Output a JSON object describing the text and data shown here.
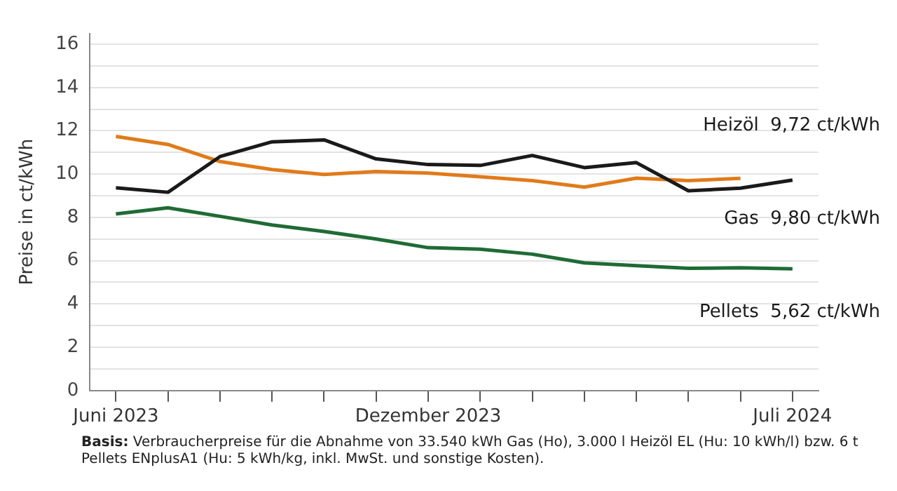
{
  "chart_data": {
    "type": "line",
    "ylabel": "Preise in ct/kWh",
    "categories": [
      "Juni 2023",
      null,
      null,
      null,
      null,
      null,
      "Dezember 2023",
      null,
      null,
      null,
      null,
      null,
      null,
      "Juli 2024"
    ],
    "series": [
      {
        "name": "Heizöl",
        "color": "#1a1a1a",
        "values": [
          9.37,
          9.16,
          10.81,
          11.49,
          11.58,
          10.7,
          10.44,
          10.4,
          10.86,
          10.3,
          10.53,
          9.23,
          9.35,
          9.72
        ],
        "value_labels": [
          null,
          null,
          null,
          null,
          null,
          null,
          null,
          null,
          null,
          null,
          null,
          null,
          null,
          "9,72 ct/kWh"
        ]
      },
      {
        "name": "Gas",
        "color": "#e07b1a",
        "values": [
          11.74,
          11.37,
          10.58,
          10.21,
          9.98,
          10.12,
          10.05,
          9.88,
          9.7,
          9.4,
          9.81,
          9.7,
          9.8,
          null
        ],
        "value_labels": [
          null,
          null,
          null,
          null,
          null,
          null,
          null,
          null,
          null,
          null,
          null,
          null,
          "9,80 ct/kWh",
          null
        ]
      },
      {
        "name": "Pellets",
        "color": "#1f6b35",
        "values": [
          8.16,
          8.44,
          8.05,
          7.65,
          7.35,
          7.0,
          6.6,
          6.53,
          6.3,
          5.9,
          5.77,
          5.65,
          5.67,
          5.62
        ],
        "value_labels": [
          null,
          null,
          null,
          null,
          null,
          null,
          null,
          null,
          null,
          null,
          null,
          null,
          null,
          "5,62 ct/kWh"
        ]
      }
    ],
    "ylim": [
      0,
      16.5
    ],
    "yticks": [
      0,
      {
        "value": 1,
        "label": null
      },
      2,
      {
        "value": 3,
        "label": null
      },
      4,
      {
        "value": 5,
        "label": null
      },
      6,
      {
        "value": 7,
        "label": null
      },
      8,
      {
        "value": 9,
        "label": null
      },
      10,
      {
        "value": 11,
        "label": null
      },
      12,
      {
        "value": 13,
        "label": null
      },
      14,
      {
        "value": 15,
        "label": null
      },
      16
    ],
    "grid": "y",
    "legend": false,
    "marker": "none",
    "line_style": "solid",
    "annotations": [
      "Basis: Verbraucherpreise für die Abnahme von 33.540 kWh Gas (Ho), 3.000 l Heizöl EL (Hu: 10 kWh/l) bzw. 6 t Pellets ENplusA1 (Hu: 5 kWh/kg, inkl. MwSt. und sonstige Kosten)."
    ]
  }
}
